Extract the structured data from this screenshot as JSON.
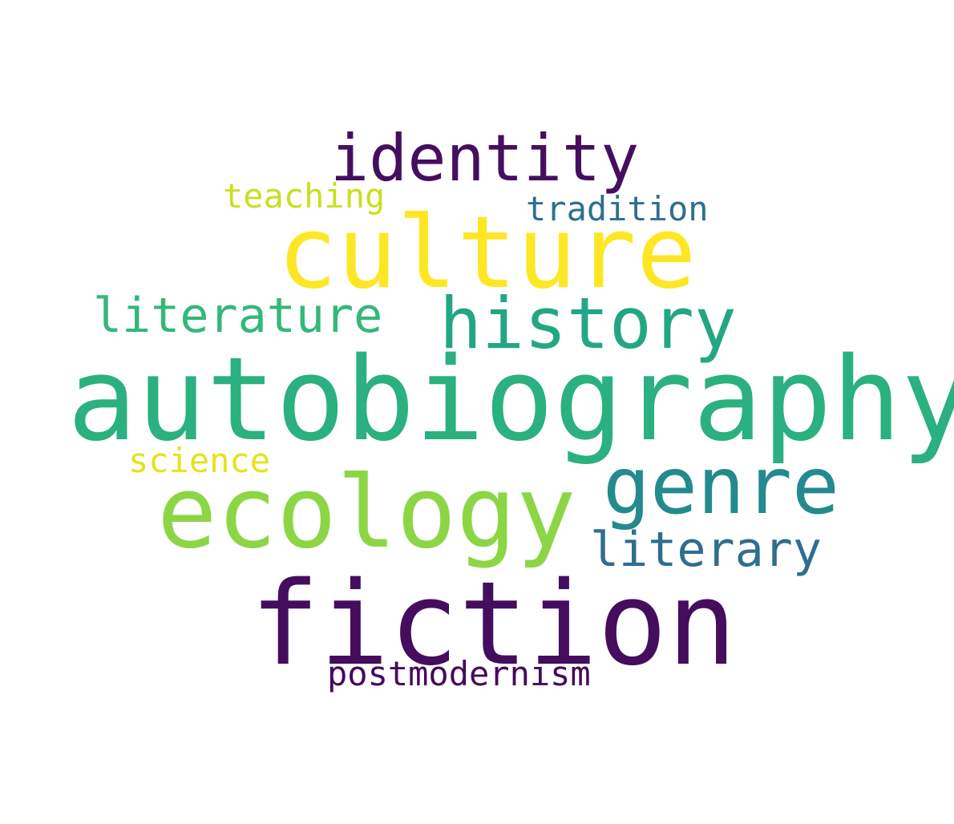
{
  "words": {
    "autobiography": {
      "text": "autobiography",
      "color": "#2BB07F"
    },
    "fiction": {
      "text": "fiction",
      "color": "#440D5E"
    },
    "culture": {
      "text": "culture",
      "color": "#FDE725"
    },
    "ecology": {
      "text": "ecology",
      "color": "#8CD646"
    },
    "genre": {
      "text": "genre",
      "color": "#238A8D"
    },
    "history": {
      "text": "history",
      "color": "#22A785"
    },
    "identity": {
      "text": "identity",
      "color": "#450E5F"
    },
    "literature": {
      "text": "literature",
      "color": "#35B779"
    },
    "literary": {
      "text": "literary",
      "color": "#2E6E8E"
    },
    "tradition": {
      "text": "tradition",
      "color": "#2D6F8E"
    },
    "teaching": {
      "text": "teaching",
      "color": "#C8E020"
    },
    "science": {
      "text": "science",
      "color": "#E5E419"
    },
    "postmodernism": {
      "text": "postmodernism",
      "color": "#460A5D"
    }
  },
  "background_color": "#FFFFFF"
}
